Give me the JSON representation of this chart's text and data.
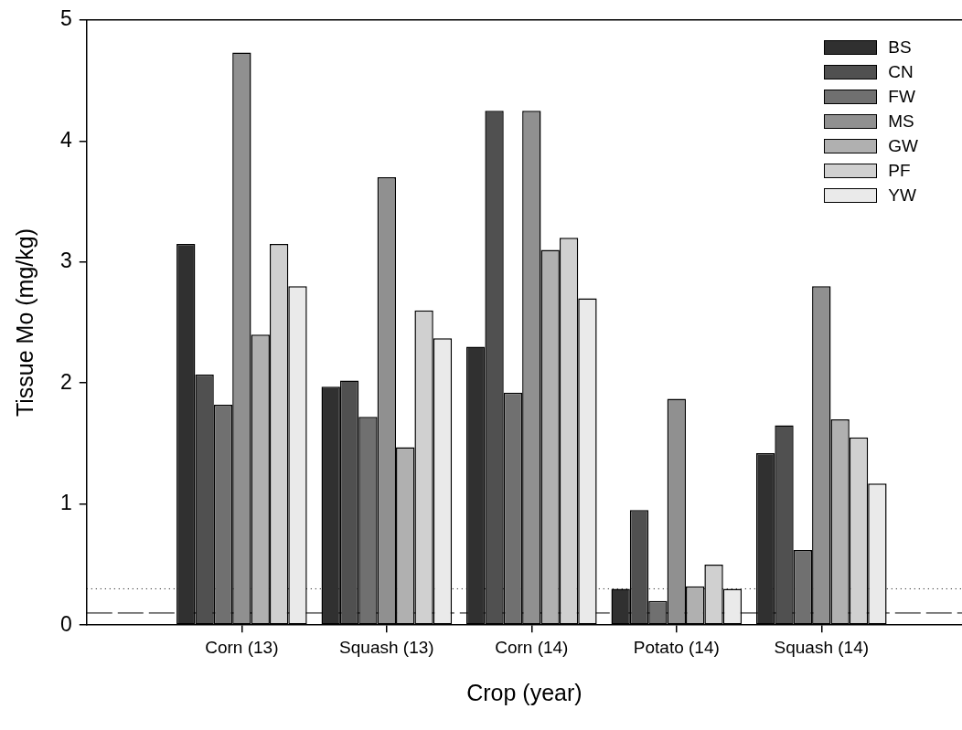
{
  "chart_data": {
    "type": "bar",
    "xlabel": "Crop (year)",
    "ylabel": "Tissue Mo (mg/kg)",
    "categories": [
      "Corn (13)",
      "Squash (13)",
      "Corn (14)",
      "Potato (14)",
      "Squash (14)"
    ],
    "series": [
      {
        "name": "BS",
        "color": "#303030",
        "values": [
          3.15,
          1.97,
          2.3,
          0.3,
          1.42
        ]
      },
      {
        "name": "CN",
        "color": "#505050",
        "values": [
          2.07,
          2.02,
          4.25,
          0.95,
          1.65
        ]
      },
      {
        "name": "FW",
        "color": "#707070",
        "values": [
          1.82,
          1.72,
          1.92,
          0.2,
          0.62
        ]
      },
      {
        "name": "MS",
        "color": "#909090",
        "values": [
          4.73,
          3.7,
          4.25,
          1.87,
          2.8
        ]
      },
      {
        "name": "GW",
        "color": "#b0b0b0",
        "values": [
          2.4,
          1.47,
          3.1,
          0.32,
          1.7
        ]
      },
      {
        "name": "PF",
        "color": "#d0d0d0",
        "values": [
          3.15,
          2.6,
          3.2,
          0.5,
          1.55
        ]
      },
      {
        "name": "YW",
        "color": "#eaeaea",
        "values": [
          2.8,
          2.37,
          2.7,
          0.3,
          1.17
        ]
      }
    ],
    "ylim": [
      0,
      5
    ],
    "yticks": [
      0,
      1,
      2,
      3,
      4,
      5
    ],
    "grid": false,
    "legend": "top right",
    "ref_lines": [
      {
        "axis": "y",
        "value": 0.3,
        "line_style": "dotted",
        "color": "#000000"
      },
      {
        "axis": "y",
        "value": 0.1,
        "line_style": "dashed",
        "color": "#000000"
      }
    ]
  }
}
